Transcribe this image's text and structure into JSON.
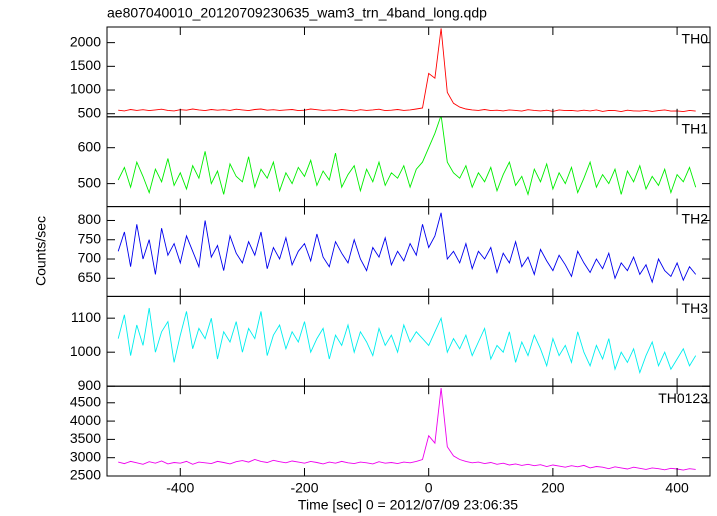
{
  "chart_data": {
    "type": "line",
    "title": "ae807040010_20120709230635_wam3_trn_4band_long.qdp",
    "xlabel": "Time [sec] 0 = 2012/07/09 23:06:35",
    "ylabel": "Counts/sec",
    "xlim": [
      -518,
      453
    ],
    "xticks": [
      -400,
      -200,
      0,
      200,
      400
    ],
    "x": [
      -500,
      -490,
      -480,
      -470,
      -460,
      -450,
      -440,
      -430,
      -420,
      -410,
      -400,
      -390,
      -380,
      -370,
      -360,
      -350,
      -340,
      -330,
      -320,
      -310,
      -300,
      -290,
      -280,
      -270,
      -260,
      -250,
      -240,
      -230,
      -220,
      -210,
      -200,
      -190,
      -180,
      -170,
      -160,
      -150,
      -140,
      -130,
      -120,
      -110,
      -100,
      -90,
      -80,
      -70,
      -60,
      -50,
      -40,
      -30,
      -20,
      -10,
      0,
      10,
      20,
      30,
      40,
      50,
      60,
      70,
      80,
      90,
      100,
      110,
      120,
      130,
      140,
      150,
      160,
      170,
      180,
      190,
      200,
      210,
      220,
      230,
      240,
      250,
      260,
      270,
      280,
      290,
      300,
      310,
      320,
      330,
      340,
      350,
      360,
      370,
      380,
      390,
      400,
      410,
      420,
      430
    ],
    "panels": [
      {
        "name": "TH0",
        "color": "#ff0000",
        "ylim": [
          435,
          2330
        ],
        "yticks": [
          500,
          1000,
          1500,
          2000
        ],
        "values": [
          575,
          560,
          590,
          570,
          585,
          565,
          580,
          595,
          570,
          560,
          585,
          575,
          600,
          580,
          565,
          590,
          575,
          585,
          570,
          595,
          580,
          565,
          590,
          600,
          575,
          585,
          570,
          580,
          590,
          565,
          575,
          600,
          585,
          570,
          580,
          565,
          590,
          575,
          560,
          585,
          570,
          580,
          595,
          565,
          575,
          590,
          570,
          580,
          600,
          620,
          1350,
          1250,
          2300,
          950,
          720,
          640,
          600,
          580,
          570,
          590,
          565,
          575,
          560,
          580,
          570,
          555,
          585,
          570,
          560,
          575,
          550,
          580,
          565,
          570,
          555,
          575,
          560,
          580,
          550,
          570,
          565,
          545,
          575,
          560,
          555,
          570,
          550,
          565,
          580,
          555,
          560,
          545,
          570,
          555
        ]
      },
      {
        "name": "TH1",
        "color": "#00ee00",
        "ylim": [
          436,
          686
        ],
        "yticks": [
          500,
          600
        ],
        "values": [
          510,
          545,
          490,
          560,
          520,
          475,
          540,
          505,
          570,
          495,
          530,
          485,
          550,
          515,
          590,
          500,
          535,
          470,
          555,
          520,
          505,
          575,
          490,
          540,
          515,
          560,
          480,
          530,
          500,
          545,
          520,
          565,
          495,
          535,
          510,
          585,
          490,
          525,
          550,
          480,
          540,
          505,
          560,
          495,
          530,
          515,
          550,
          490,
          540,
          560,
          600,
          640,
          690,
          560,
          530,
          515,
          550,
          490,
          530,
          505,
          545,
          480,
          525,
          560,
          495,
          520,
          470,
          540,
          505,
          555,
          485,
          530,
          500,
          545,
          475,
          515,
          560,
          490,
          525,
          500,
          540,
          470,
          535,
          505,
          550,
          485,
          520,
          495,
          540,
          475,
          525,
          505,
          545,
          490
        ]
      },
      {
        "name": "TH2",
        "color": "#0000ee",
        "ylim": [
          603,
          836
        ],
        "yticks": [
          650,
          700,
          750,
          800
        ],
        "values": [
          720,
          770,
          680,
          790,
          700,
          750,
          660,
          780,
          710,
          740,
          690,
          760,
          720,
          680,
          800,
          705,
          735,
          670,
          760,
          715,
          690,
          745,
          710,
          770,
          675,
          730,
          700,
          755,
          685,
          720,
          740,
          695,
          765,
          705,
          680,
          745,
          715,
          690,
          750,
          700,
          670,
          730,
          705,
          755,
          685,
          720,
          695,
          740,
          710,
          790,
          730,
          760,
          820,
          700,
          720,
          690,
          740,
          675,
          720,
          700,
          730,
          665,
          715,
          690,
          745,
          680,
          705,
          660,
          725,
          695,
          670,
          710,
          685,
          655,
          720,
          690,
          665,
          700,
          675,
          715,
          650,
          690,
          670,
          705,
          660,
          685,
          640,
          700,
          670,
          655,
          690,
          645,
          680,
          660
        ]
      },
      {
        "name": "TH3",
        "color": "#00eeee",
        "ylim": [
          900,
          1164
        ],
        "yticks": [
          900,
          1000,
          1100
        ],
        "values": [
          1040,
          1110,
          990,
          1080,
          1020,
          1130,
          1000,
          1060,
          1090,
          970,
          1050,
          1120,
          1010,
          1070,
          1040,
          1100,
          980,
          1060,
          1030,
          1090,
          1000,
          1070,
          1040,
          1120,
          990,
          1050,
          1080,
          1010,
          1060,
          1030,
          1090,
          1000,
          1040,
          1070,
          980,
          1050,
          1020,
          1080,
          1000,
          1060,
          1030,
          990,
          1070,
          1020,
          1050,
          1000,
          1080,
          1030,
          1060,
          1040,
          1020,
          1060,
          1100,
          1000,
          1040,
          1010,
          1050,
          990,
          1030,
          1070,
          980,
          1020,
          1000,
          1060,
          970,
          1030,
          990,
          1050,
          1010,
          960,
          1040,
          990,
          1020,
          970,
          1060,
          1000,
          960,
          1020,
          980,
          1040,
          950,
          1000,
          970,
          1010,
          940,
          990,
          1030,
          960,
          1000,
          950,
          980,
          1010,
          960,
          990
        ]
      },
      {
        "name": "TH0123",
        "color": "#ee00ee",
        "ylim": [
          2500,
          4953
        ],
        "yticks": [
          2500,
          3000,
          3500,
          4000,
          4500
        ],
        "values": [
          2880,
          2840,
          2900,
          2860,
          2820,
          2890,
          2850,
          2910,
          2830,
          2870,
          2850,
          2900,
          2820,
          2880,
          2860,
          2840,
          2900,
          2870,
          2830,
          2890,
          2920,
          2880,
          2950,
          2900,
          2870,
          2930,
          2890,
          2860,
          2910,
          2880,
          2850,
          2900,
          2870,
          2830,
          2880,
          2850,
          2900,
          2860,
          2840,
          2880,
          2860,
          2830,
          2890,
          2850,
          2870,
          2840,
          2880,
          2860,
          2900,
          2950,
          3600,
          3400,
          4900,
          3300,
          3050,
          2950,
          2900,
          2860,
          2880,
          2840,
          2870,
          2820,
          2850,
          2800,
          2830,
          2790,
          2820,
          2780,
          2810,
          2760,
          2800,
          2770,
          2740,
          2780,
          2750,
          2790,
          2720,
          2760,
          2740,
          2700,
          2750,
          2720,
          2690,
          2740,
          2710,
          2680,
          2720,
          2700,
          2670,
          2710,
          2690,
          2660,
          2700,
          2680
        ]
      }
    ]
  }
}
